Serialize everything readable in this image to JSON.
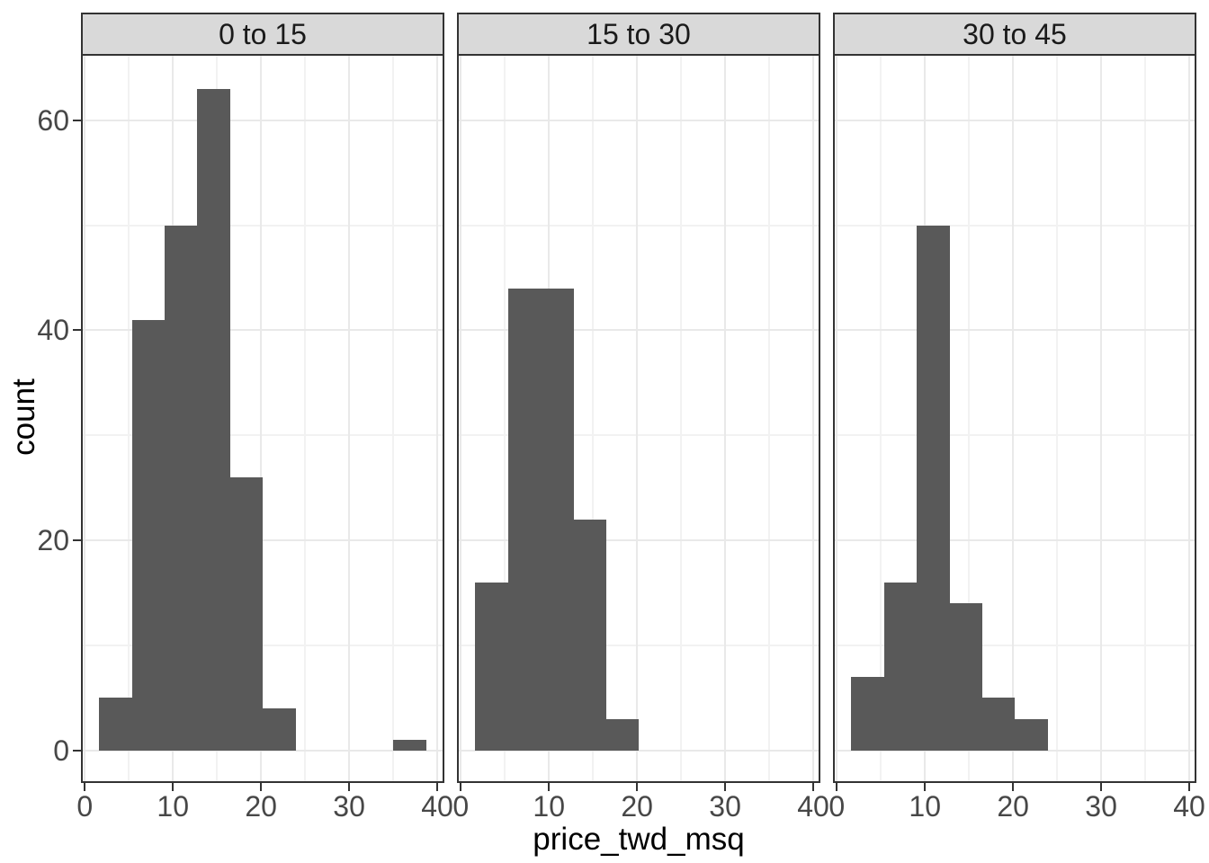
{
  "chart_data": {
    "type": "histogram",
    "faceted": true,
    "title": "",
    "xlabel": "price_twd_msq",
    "ylabel": "count",
    "bin_edges": [
      1.63,
      5.34,
      9.05,
      12.76,
      16.48,
      20.19,
      23.9,
      27.61,
      31.32,
      35.04,
      38.75
    ],
    "facets": [
      {
        "label": "0 to 15",
        "counts": [
          5,
          41,
          50,
          63,
          26,
          4,
          0,
          0,
          0,
          1
        ]
      },
      {
        "label": "15 to 30",
        "counts": [
          16,
          44,
          44,
          22,
          3,
          0,
          0,
          0,
          0,
          0
        ]
      },
      {
        "label": "30 to 45",
        "counts": [
          7,
          16,
          50,
          14,
          5,
          3,
          0,
          0,
          0,
          0
        ]
      }
    ],
    "x_ticks": [
      0,
      10,
      20,
      30,
      40
    ],
    "y_ticks": [
      0,
      20,
      40,
      60
    ],
    "x_minor_gridlines": [
      5,
      15,
      25,
      35
    ],
    "y_minor_gridlines": [
      10,
      30,
      50
    ],
    "xlim": [
      -0.23,
      40.61
    ],
    "ylim": [
      -2.95,
      66.15
    ],
    "grid": "major+minor",
    "legend": "none"
  },
  "colors": {
    "bar_fill": "#595959",
    "panel_background": "#FFFFFF",
    "panel_border": "#333333",
    "grid_major": "#E9E9E9",
    "grid_minor": "#F2F2F2",
    "strip_background": "#D9D9D9",
    "strip_text": "#1A1A1A",
    "axis_text": "#474747",
    "axis_title": "#000000",
    "tick_mark": "#333333"
  }
}
